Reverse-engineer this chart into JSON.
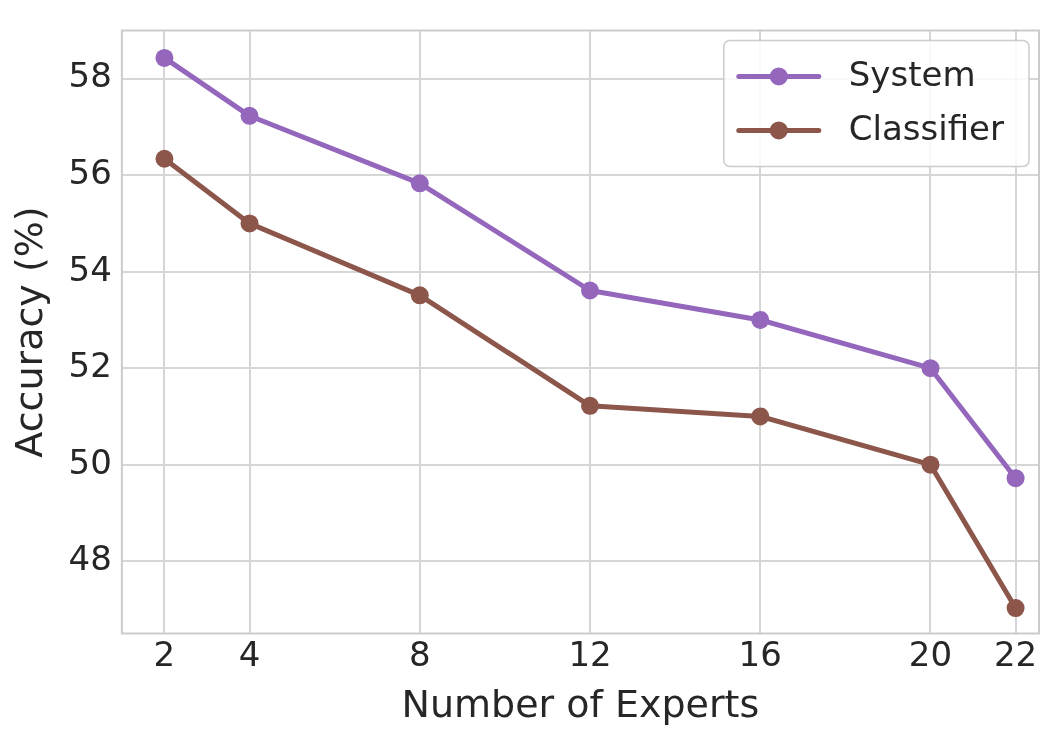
{
  "chart_data": {
    "type": "line",
    "xlabel": "Number of Experts",
    "ylabel": "Accuracy (%)",
    "x": [
      2,
      4,
      8,
      12,
      16,
      20,
      22
    ],
    "series": [
      {
        "name": "System",
        "color": "#9467bd",
        "values": [
          58.43,
          57.23,
          55.83,
          53.61,
          53.0,
          52.0,
          49.72
        ]
      },
      {
        "name": "Classifier",
        "color": "#8c564b",
        "values": [
          56.34,
          55.0,
          53.51,
          51.22,
          51.0,
          50.0,
          47.03
        ]
      }
    ],
    "xlim": [
      1,
      22.55
    ],
    "xticks": [
      2,
      4,
      8,
      12,
      16,
      20,
      22
    ],
    "ylim": [
      46.5,
      59.0
    ],
    "yticks": [
      48,
      50,
      52,
      54,
      56,
      58
    ],
    "grid": true,
    "legend": "top right",
    "marker": "circle",
    "line_style": "solid"
  }
}
